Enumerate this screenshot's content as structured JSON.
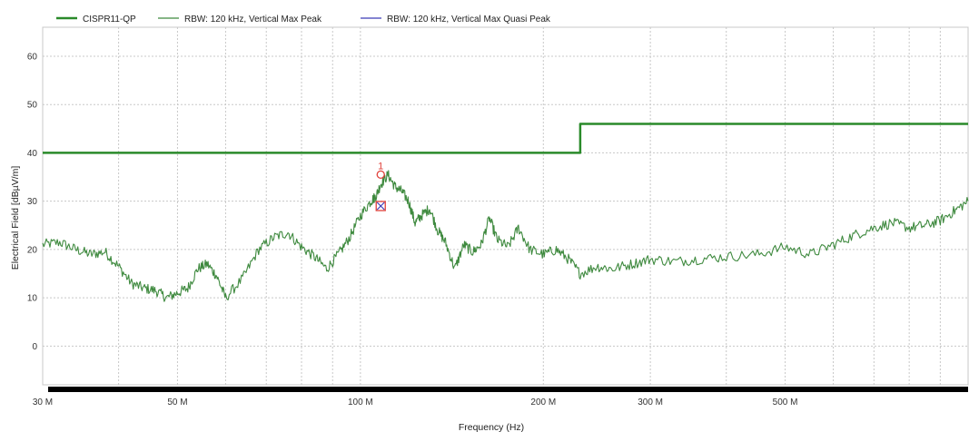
{
  "chart_data": {
    "type": "line",
    "xlabel": "Frequency (Hz)",
    "ylabel": "Electrical Field [dBµV/m]",
    "x_scale": "log",
    "xlim": [
      30000000,
      1000000000
    ],
    "ylim": [
      -8,
      66
    ],
    "grid": true,
    "legend_position": "top",
    "x_ticks": [
      {
        "value": 30000000,
        "label": "30 M"
      },
      {
        "value": 50000000,
        "label": "50 M"
      },
      {
        "value": 100000000,
        "label": "100 M"
      },
      {
        "value": 200000000,
        "label": "200 M"
      },
      {
        "value": 300000000,
        "label": "300 M"
      },
      {
        "value": 500000000,
        "label": "500 M"
      }
    ],
    "y_ticks": [
      {
        "value": 0,
        "label": "0"
      },
      {
        "value": 10,
        "label": "10"
      },
      {
        "value": 20,
        "label": "20"
      },
      {
        "value": 30,
        "label": "30"
      },
      {
        "value": 40,
        "label": "40"
      },
      {
        "value": 50,
        "label": "50"
      },
      {
        "value": 60,
        "label": "60"
      }
    ],
    "series": [
      {
        "name": "CISPR11-QP",
        "color": "#2a8a2a",
        "style": "step",
        "x": [
          30000000,
          230000000,
          230000000,
          1000000000
        ],
        "y": [
          40,
          40,
          46,
          46
        ]
      },
      {
        "name": "RBW: 120 kHz, Vertical Max Peak",
        "color": "#3f8a3f",
        "x": [
          30000000,
          32000000,
          34000000,
          36000000,
          38000000,
          40000000,
          42000000,
          44000000,
          46000000,
          48000000,
          50000000,
          52000000,
          54000000,
          56000000,
          58000000,
          60000000,
          64000000,
          68000000,
          72000000,
          76000000,
          80000000,
          84000000,
          88000000,
          92000000,
          96000000,
          100000000,
          104000000,
          106000000,
          108000000,
          111000000,
          114000000,
          117000000,
          120000000,
          123000000,
          126000000,
          130000000,
          134000000,
          138000000,
          143000000,
          148000000,
          153000000,
          158000000,
          163000000,
          168000000,
          175000000,
          182000000,
          190000000,
          200000000,
          210000000,
          220000000,
          230000000,
          245000000,
          260000000,
          280000000,
          300000000,
          330000000,
          360000000,
          400000000,
          450000000,
          500000000,
          550000000,
          600000000,
          650000000,
          700000000,
          750000000,
          800000000,
          850000000,
          900000000,
          950000000,
          1000000000
        ],
        "y": [
          21,
          21.5,
          20,
          19,
          19.5,
          16.5,
          13,
          12,
          11.5,
          10,
          11,
          12,
          16,
          17,
          14.5,
          10,
          14,
          20,
          22.5,
          23.5,
          20.5,
          18.5,
          16,
          19,
          22.5,
          27,
          30,
          31,
          33.5,
          35.5,
          33,
          32,
          30,
          25.5,
          27,
          28.5,
          24,
          21.5,
          16,
          21,
          19.5,
          21,
          26.5,
          22,
          20.5,
          24.5,
          20,
          19,
          20,
          18,
          15,
          16.5,
          16,
          17,
          18,
          17.5,
          18,
          18.5,
          19,
          20.5,
          19,
          21,
          23,
          24.5,
          25.5,
          24.5,
          25,
          26,
          28,
          30
        ]
      },
      {
        "name": "RBW: 120 kHz, Vertical Max Quasi Peak",
        "color": "#3b3bb8",
        "x": [],
        "y": []
      }
    ],
    "markers": [
      {
        "label": "1",
        "x": 108000000,
        "y": 35.5,
        "shape": "circle",
        "color": "#e0403a"
      },
      {
        "label": "",
        "x": 108000000,
        "y": 29,
        "shape": "boxed-x",
        "color": "#e0403a"
      }
    ]
  }
}
